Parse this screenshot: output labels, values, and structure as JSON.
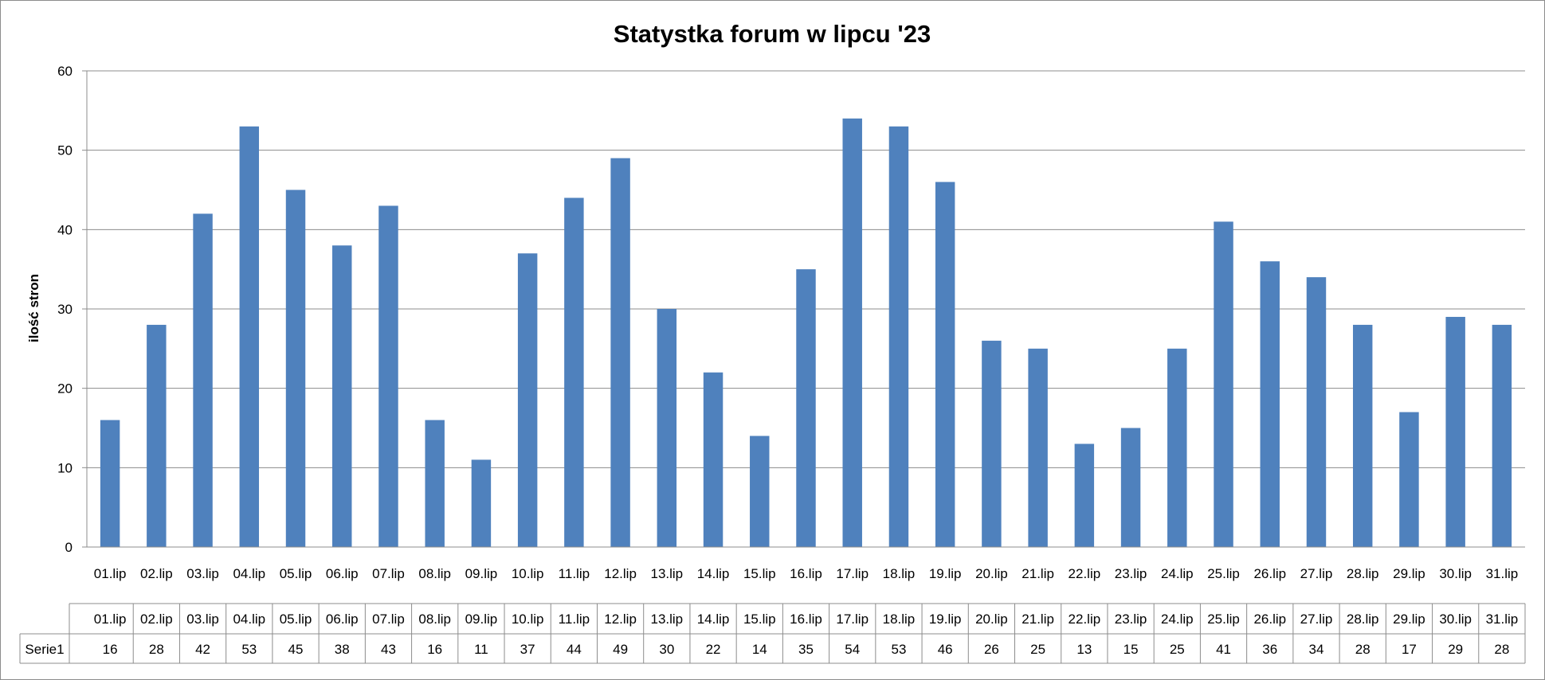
{
  "chart_data": {
    "type": "bar",
    "title": "Statystka forum w lipcu '23",
    "xlabel": "",
    "ylabel": "ilość stron",
    "ylim": [
      0,
      60
    ],
    "yticks": [
      "0",
      "10",
      "20",
      "30",
      "40",
      "50",
      "60"
    ],
    "grid": true,
    "color": "#4F81BD",
    "categories": [
      "01.lip",
      "02.lip",
      "03.lip",
      "04.lip",
      "05.lip",
      "06.lip",
      "07.lip",
      "08.lip",
      "09.lip",
      "10.lip",
      "11.lip",
      "12.lip",
      "13.lip",
      "14.lip",
      "15.lip",
      "16.lip",
      "17.lip",
      "18.lip",
      "19.lip",
      "20.lip",
      "21.lip",
      "22.lip",
      "23.lip",
      "24.lip",
      "25.lip",
      "26.lip",
      "27.lip",
      "28.lip",
      "29.lip",
      "30.lip",
      "31.lip"
    ],
    "series": [
      {
        "name": "Serie1",
        "values": [
          16,
          28,
          42,
          53,
          45,
          38,
          43,
          16,
          11,
          37,
          44,
          49,
          30,
          22,
          14,
          35,
          54,
          53,
          46,
          26,
          25,
          13,
          15,
          25,
          41,
          36,
          34,
          28,
          17,
          29,
          28
        ]
      }
    ],
    "data_table": true
  }
}
